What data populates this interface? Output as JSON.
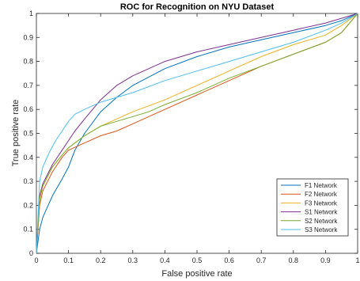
{
  "chart_data": {
    "type": "line",
    "title": "ROC for Recognition on NYU Dataset",
    "xlabel": "False positive rate",
    "ylabel": "True positive rate",
    "xlim": [
      0,
      1
    ],
    "ylim": [
      0,
      1
    ],
    "grid": false,
    "legend_position": "bottom-right",
    "xticks": [
      "0",
      "0.1",
      "0.2",
      "0.3",
      "0.4",
      "0.5",
      "0.6",
      "0.7",
      "0.8",
      "0.9",
      "1"
    ],
    "yticks": [
      "0",
      "0.1",
      "0.2",
      "0.3",
      "0.4",
      "0.5",
      "0.6",
      "0.7",
      "0.8",
      "0.9",
      "1"
    ],
    "series": [
      {
        "name": "F1 Network",
        "color": "#0072BD",
        "x": [
          0,
          0.01,
          0.02,
          0.05,
          0.08,
          0.1,
          0.12,
          0.15,
          0.2,
          0.25,
          0.3,
          0.4,
          0.5,
          0.6,
          0.7,
          0.8,
          0.9,
          0.95,
          1.0
        ],
        "y": [
          0,
          0.1,
          0.15,
          0.24,
          0.31,
          0.36,
          0.43,
          0.5,
          0.59,
          0.65,
          0.7,
          0.77,
          0.82,
          0.86,
          0.89,
          0.92,
          0.95,
          0.97,
          1.0
        ]
      },
      {
        "name": "F2 Network",
        "color": "#D95319",
        "x": [
          0,
          0.01,
          0.02,
          0.05,
          0.08,
          0.1,
          0.15,
          0.2,
          0.25,
          0.3,
          0.35,
          0.4,
          0.5,
          0.6,
          0.7,
          0.8,
          0.9,
          0.95,
          1.0
        ],
        "y": [
          0,
          0.2,
          0.26,
          0.34,
          0.4,
          0.43,
          0.46,
          0.49,
          0.51,
          0.54,
          0.57,
          0.6,
          0.66,
          0.72,
          0.78,
          0.83,
          0.88,
          0.92,
          1.0
        ]
      },
      {
        "name": "F3 Network",
        "color": "#EDB120",
        "x": [
          0,
          0.01,
          0.02,
          0.05,
          0.08,
          0.1,
          0.15,
          0.2,
          0.25,
          0.3,
          0.4,
          0.5,
          0.6,
          0.7,
          0.8,
          0.9,
          0.95,
          1.0
        ],
        "y": [
          0,
          0.22,
          0.28,
          0.36,
          0.41,
          0.44,
          0.49,
          0.53,
          0.56,
          0.59,
          0.64,
          0.7,
          0.76,
          0.82,
          0.87,
          0.91,
          0.95,
          1.0
        ]
      },
      {
        "name": "S1 Network",
        "color": "#7E2F8E",
        "x": [
          0,
          0.01,
          0.02,
          0.05,
          0.08,
          0.1,
          0.12,
          0.15,
          0.2,
          0.25,
          0.3,
          0.4,
          0.5,
          0.6,
          0.7,
          0.8,
          0.9,
          0.95,
          1.0
        ],
        "y": [
          0,
          0.24,
          0.29,
          0.37,
          0.43,
          0.47,
          0.51,
          0.56,
          0.64,
          0.7,
          0.74,
          0.8,
          0.84,
          0.87,
          0.9,
          0.93,
          0.96,
          0.98,
          1.0
        ]
      },
      {
        "name": "S2 Network",
        "color": "#77AC30",
        "x": [
          0,
          0.01,
          0.02,
          0.05,
          0.08,
          0.1,
          0.15,
          0.2,
          0.25,
          0.3,
          0.35,
          0.4,
          0.5,
          0.6,
          0.7,
          0.8,
          0.9,
          0.95,
          1.0
        ],
        "y": [
          0,
          0.23,
          0.28,
          0.36,
          0.41,
          0.44,
          0.49,
          0.53,
          0.55,
          0.57,
          0.59,
          0.62,
          0.67,
          0.73,
          0.78,
          0.83,
          0.88,
          0.92,
          1.0
        ]
      },
      {
        "name": "S3 Network",
        "color": "#4DBEEE",
        "x": [
          0,
          0.01,
          0.02,
          0.04,
          0.06,
          0.08,
          0.1,
          0.12,
          0.15,
          0.2,
          0.25,
          0.3,
          0.4,
          0.5,
          0.6,
          0.7,
          0.8,
          0.9,
          0.95,
          1.0
        ],
        "y": [
          0,
          0.3,
          0.36,
          0.42,
          0.47,
          0.51,
          0.55,
          0.58,
          0.6,
          0.63,
          0.65,
          0.67,
          0.72,
          0.76,
          0.8,
          0.84,
          0.88,
          0.93,
          0.96,
          1.0
        ]
      }
    ]
  }
}
